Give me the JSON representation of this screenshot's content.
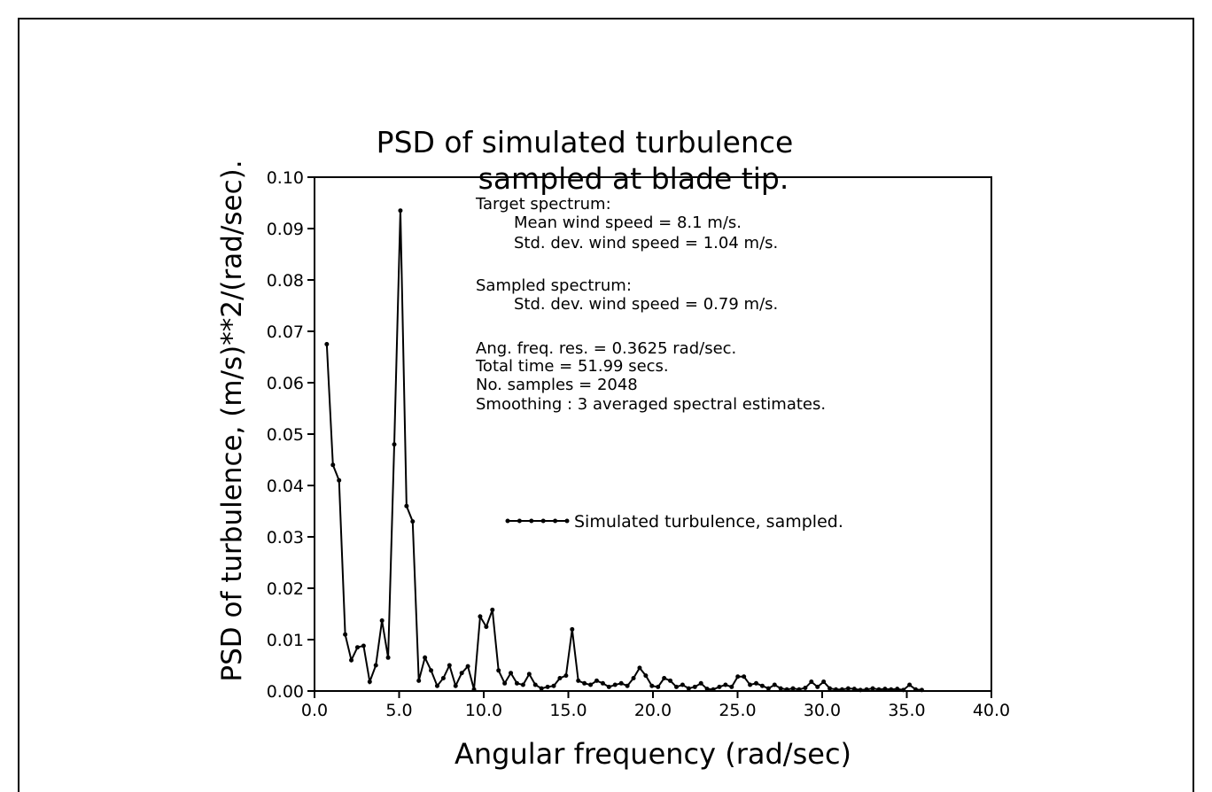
{
  "chart_data": {
    "type": "line",
    "title": [
      "PSD of simulated turbulence",
      "sampled at blade tip."
    ],
    "x_label": "Angular frequency (rad/sec)",
    "y_label": "PSD of turbulence, (m/s)**2/(rad/sec).",
    "annotations": [
      "Target spectrum:",
      "Mean wind speed = 8.1 m/s.",
      "Std. dev. wind speed = 1.04 m/s.",
      "Sampled spectrum:",
      "Std. dev. wind speed = 0.79 m/s.",
      "Ang. freq. res. = 0.3625 rad/sec.",
      "Total time = 51.99 secs.",
      "No. samples = 2048",
      "Smoothing : 3 averaged spectral estimates."
    ],
    "xlim": [
      0,
      40
    ],
    "ylim": [
      0,
      0.1
    ],
    "xticks": [
      {
        "value": 0,
        "label": "0.0"
      },
      {
        "value": 5,
        "label": "5.0"
      },
      {
        "value": 10,
        "label": "10.0"
      },
      {
        "value": 15,
        "label": "15.0"
      },
      {
        "value": 20,
        "label": "20.0"
      },
      {
        "value": 25,
        "label": "25.0"
      },
      {
        "value": 30,
        "label": "30.0"
      },
      {
        "value": 35,
        "label": "35.0"
      },
      {
        "value": 40,
        "label": "40.0"
      }
    ],
    "yticks": [
      {
        "value": 0,
        "label": "0.00"
      },
      0.01,
      0.02,
      0.03,
      0.04,
      0.05,
      0.06,
      0.07,
      0.08,
      0.09,
      {
        "value": 0.1,
        "label": "0.10"
      }
    ],
    "x": [
      0.725,
      1.0875,
      1.45,
      1.8125,
      2.175,
      2.5375,
      2.9,
      3.2625,
      3.625,
      3.9875,
      4.35,
      4.7125,
      5.075,
      5.4375,
      5.8,
      6.1625,
      6.525,
      6.8875,
      7.25,
      7.6125,
      7.975,
      8.3375,
      8.7,
      9.0625,
      9.425,
      9.7875,
      10.15,
      10.5125,
      10.875,
      11.2375,
      11.6,
      11.9625,
      12.325,
      12.6875,
      13.05,
      13.4125,
      13.775,
      14.1375,
      14.5,
      14.8625,
      15.225,
      15.5875,
      15.95,
      16.3125,
      16.675,
      17.0375,
      17.4,
      17.7625,
      18.125,
      18.4875,
      18.85,
      19.2125,
      19.575,
      19.9375,
      20.3,
      20.6625,
      21.025,
      21.3875,
      21.75,
      22.1125,
      22.475,
      22.8375,
      23.2,
      23.5625,
      23.925,
      24.2875,
      24.65,
      25.0125,
      25.375,
      25.7375,
      26.1,
      26.4625,
      26.825,
      27.1875,
      27.55,
      27.9125,
      28.275,
      28.6375,
      29.0,
      29.3625,
      29.725,
      30.0875,
      30.45,
      30.8125,
      31.175,
      31.5375,
      31.9,
      32.2625,
      32.625,
      32.9875,
      33.35,
      33.7125,
      34.075,
      34.4375,
      34.8,
      35.1625,
      35.525,
      35.8875
    ],
    "series": [
      {
        "name": "Simulated turbulence, sampled.",
        "color": "#000000",
        "values": [
          0.0675,
          0.044,
          0.041,
          0.011,
          0.006,
          0.0085,
          0.0088,
          0.0018,
          0.005,
          0.0137,
          0.0065,
          0.048,
          0.0935,
          0.036,
          0.033,
          0.002,
          0.0065,
          0.004,
          0.001,
          0.0025,
          0.005,
          0.001,
          0.0035,
          0.0048,
          0.0003,
          0.0145,
          0.0125,
          0.0158,
          0.004,
          0.0015,
          0.0035,
          0.0015,
          0.0012,
          0.0033,
          0.0012,
          0.0005,
          0.0008,
          0.001,
          0.0025,
          0.003,
          0.012,
          0.002,
          0.0015,
          0.0012,
          0.002,
          0.0015,
          0.0008,
          0.0012,
          0.0015,
          0.001,
          0.0025,
          0.0045,
          0.003,
          0.001,
          0.0008,
          0.0025,
          0.002,
          0.0008,
          0.0012,
          0.0005,
          0.0008,
          0.0015,
          0.0004,
          0.0003,
          0.0008,
          0.0012,
          0.0008,
          0.0028,
          0.0028,
          0.0012,
          0.0015,
          0.001,
          0.0005,
          0.0012,
          0.0005,
          0.0003,
          0.0005,
          0.0003,
          0.0006,
          0.0018,
          0.0008,
          0.0018,
          0.0005,
          0.0003,
          0.0003,
          0.0005,
          0.0004,
          0.0002,
          0.0003,
          0.0005,
          0.0003,
          0.0004,
          0.0003,
          0.0004,
          0.0002,
          0.0012,
          0.0003,
          0.0002
        ]
      }
    ]
  }
}
